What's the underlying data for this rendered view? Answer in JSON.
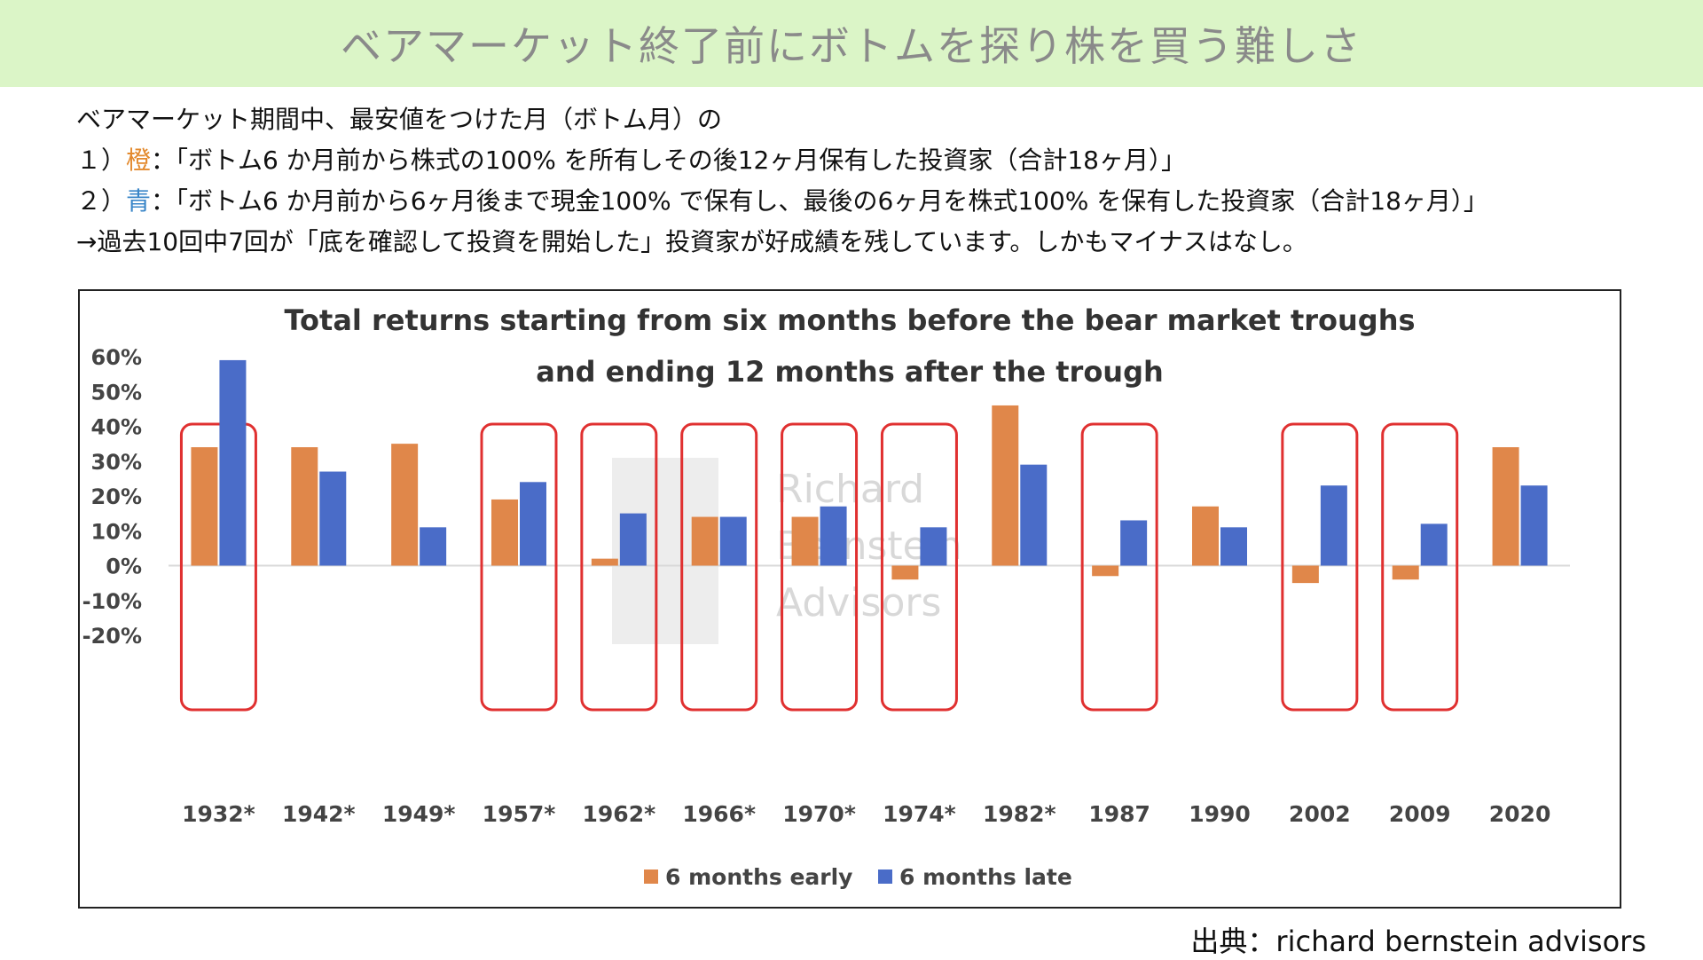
{
  "header": {
    "title": "ベアマーケット終了前にボトムを探り株を買う難しさ"
  },
  "description": {
    "line1": "ベアマーケット期間中、最安値をつけた月（ボトム月）の",
    "line2_prefix": "１）",
    "line2_color": "橙",
    "line2_rest": "：「ボトム6 か月前から株式の100% を所有しその後12ヶ月保有した投資家（合計18ヶ月）」",
    "line3_prefix": "２）",
    "line3_color": "青",
    "line3_rest": "：「ボトム6 か月前から6ヶ月後まで現金100% で保有し、最後の6ヶ月を株式100% を保有した投資家（合計18ヶ月）」",
    "line4": "→過去10回中7回が「底を確認して投資を開始した」投資家が好成績を残しています。しかもマイナスはなし。"
  },
  "colors": {
    "header_bg": "#dbf5c7",
    "orange": "#e38a2e",
    "blue": "#3a86c8",
    "series_early": "#e0874a",
    "series_late": "#4a6cc8",
    "highlight_box": "#e03030"
  },
  "source": {
    "text": "出典：richard bernstein advisors"
  },
  "watermark": [
    "Richard",
    "Bernstein",
    "Advisors"
  ],
  "chart_data": {
    "type": "bar",
    "title_lines": [
      "Total returns starting from six months before the bear market troughs",
      "and ending 12 months after the trough"
    ],
    "categories": [
      "1932*",
      "1942*",
      "1949*",
      "1957*",
      "1962*",
      "1966*",
      "1970*",
      "1974*",
      "1982*",
      "1987",
      "1990",
      "2002",
      "2009",
      "2020"
    ],
    "series": [
      {
        "name": "6 months early",
        "values": [
          34,
          34,
          35,
          19,
          2,
          14,
          14,
          -4,
          46,
          -3,
          17,
          -5,
          -4,
          34
        ]
      },
      {
        "name": "6 months late",
        "values": [
          59,
          27,
          11,
          24,
          15,
          14,
          17,
          11,
          29,
          13,
          11,
          23,
          12,
          23
        ]
      }
    ],
    "highlighted_categories": [
      "1932*",
      "1957*",
      "1962*",
      "1966*",
      "1970*",
      "1974*",
      "1987",
      "2002",
      "2009"
    ],
    "ylim": [
      -20,
      60
    ],
    "yticks": [
      -20,
      -10,
      0,
      10,
      20,
      30,
      40,
      50,
      60
    ],
    "ytick_labels": [
      "-20%",
      "-10%",
      "0%",
      "10%",
      "20%",
      "30%",
      "40%",
      "50%",
      "60%"
    ],
    "legend_position": "bottom-center",
    "grid": false
  }
}
